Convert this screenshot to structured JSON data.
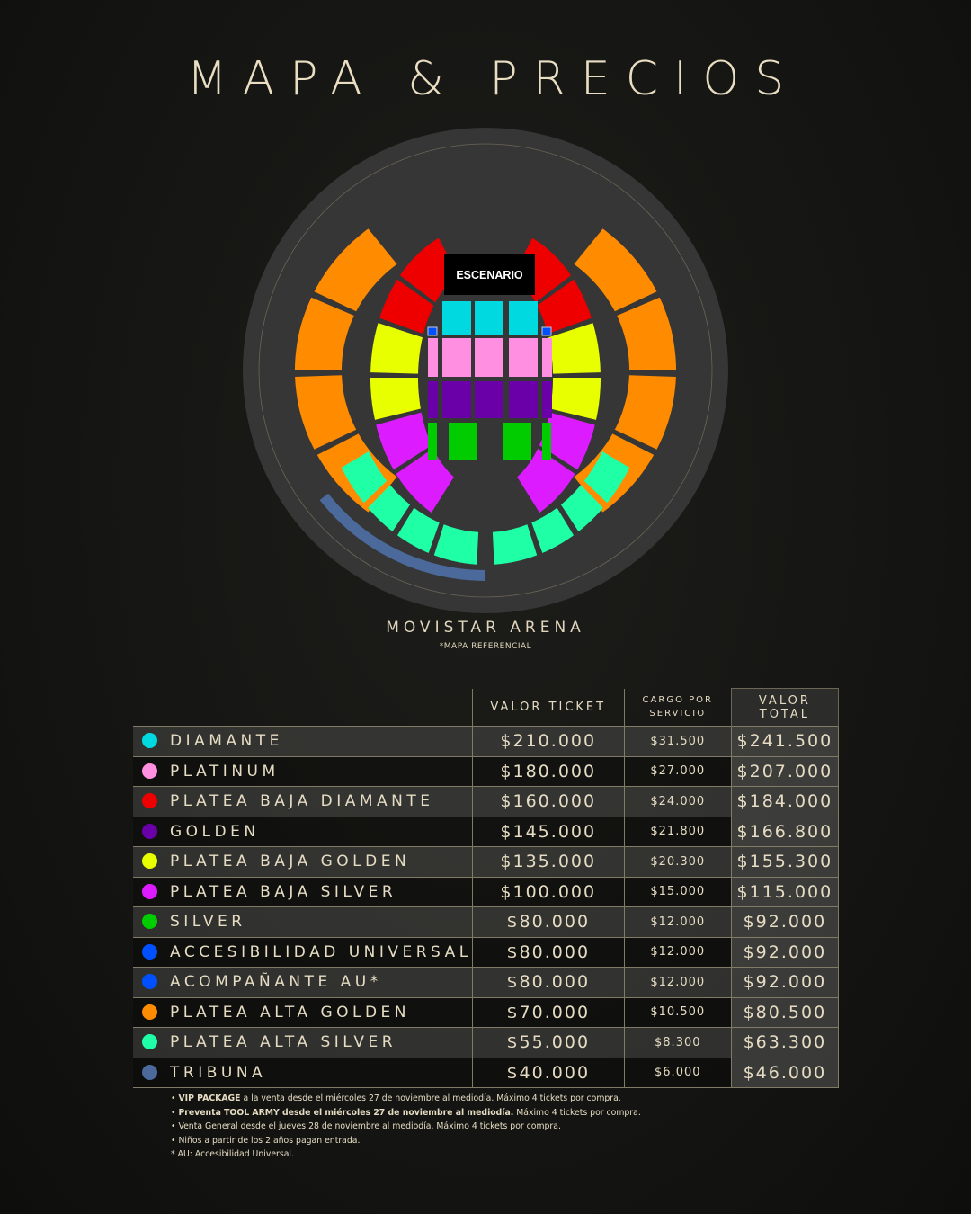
{
  "title": "MAPA & PRECIOS",
  "map": {
    "stage_label": "ESCENARIO",
    "venue_name": "MOVISTAR ARENA",
    "note": "*MAPA REFERENCIAL",
    "background_color": "#363636"
  },
  "table": {
    "headers": {
      "ticket": "VALOR TICKET",
      "cargo_line1": "CARGO POR",
      "cargo_line2": "SERVICIO",
      "total": "VALOR TOTAL"
    },
    "rows": [
      {
        "name": "DIAMANTE",
        "color": "#00d9e0",
        "ticket": "$210.000",
        "cargo": "$31.500",
        "total": "$241.500"
      },
      {
        "name": "PLATINUM",
        "color": "#ff8fe0",
        "ticket": "$180.000",
        "cargo": "$27.000",
        "total": "$207.000"
      },
      {
        "name": "PLATEA BAJA DIAMANTE",
        "color": "#ee0000",
        "ticket": "$160.000",
        "cargo": "$24.000",
        "total": "$184.000"
      },
      {
        "name": "GOLDEN",
        "color": "#6a00a8",
        "ticket": "$145.000",
        "cargo": "$21.800",
        "total": "$166.800"
      },
      {
        "name": "PLATEA BAJA GOLDEN",
        "color": "#e8ff00",
        "ticket": "$135.000",
        "cargo": "$20.300",
        "total": "$155.300"
      },
      {
        "name": "PLATEA BAJA SILVER",
        "color": "#dc1cff",
        "ticket": "$100.000",
        "cargo": "$15.000",
        "total": "$115.000"
      },
      {
        "name": "SILVER",
        "color": "#00cc00",
        "ticket": "$80.000",
        "cargo": "$12.000",
        "total": "$92.000"
      },
      {
        "name": "ACCESIBILIDAD UNIVERSAL",
        "color": "#0050ff",
        "ticket": "$80.000",
        "cargo": "$12.000",
        "total": "$92.000"
      },
      {
        "name": "ACOMPAÑANTE AU*",
        "color": "#0050ff",
        "ticket": "$80.000",
        "cargo": "$12.000",
        "total": "$92.000"
      },
      {
        "name": "PLATEA ALTA GOLDEN",
        "color": "#ff8c00",
        "ticket": "$70.000",
        "cargo": "$10.500",
        "total": "$80.500"
      },
      {
        "name": "PLATEA ALTA SILVER",
        "color": "#1effa6",
        "ticket": "$55.000",
        "cargo": "$8.300",
        "total": "$63.300"
      },
      {
        "name": "TRIBUNA",
        "color": "#4b6a9b",
        "ticket": "$40.000",
        "cargo": "$6.000",
        "total": "$46.000"
      }
    ]
  },
  "notes": [
    {
      "bold": "VIP PACKAGE",
      "text": " a la venta desde el miércoles 27 de noviembre al mediodía. Máximo 4 tickets por compra.",
      "bullet": "•"
    },
    {
      "bold": "Preventa TOOL ARMY desde el miércoles 27 de noviembre al mediodía.",
      "text": " Máximo 4 tickets por compra.",
      "bullet": "•"
    },
    {
      "bold": "",
      "text": "Venta General desde el jueves 28 de noviembre al mediodía. Máximo 4 tickets por compra.",
      "bullet": "•"
    },
    {
      "bold": "",
      "text": "Niños a partir de los 2 años pagan entrada.",
      "bullet": "•"
    },
    {
      "bold": "",
      "text": "AU: Accesibilidad Universal.",
      "bullet": "*"
    }
  ]
}
